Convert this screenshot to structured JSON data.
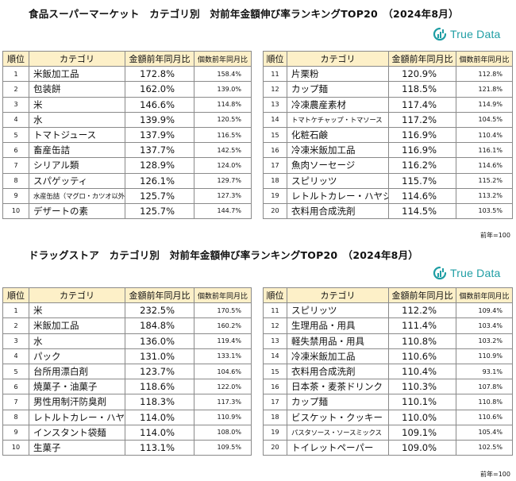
{
  "top": {
    "title": "食品スーパーマーケット　カテゴリ別　対前年金額伸び率ランキングTOP20　（2024年8月）",
    "logo_text": "True Data",
    "headers": {
      "rank": "順位",
      "category": "カテゴリ",
      "amount": "金額前年同月比",
      "count": "個数前年同月比"
    },
    "left_rows": [
      {
        "rank": "1",
        "name": "米飯加工品",
        "amount": "172.8%",
        "count": "158.4%"
      },
      {
        "rank": "2",
        "name": "包装餅",
        "amount": "162.0%",
        "count": "139.0%"
      },
      {
        "rank": "3",
        "name": "米",
        "amount": "146.6%",
        "count": "114.8%"
      },
      {
        "rank": "4",
        "name": "水",
        "amount": "139.9%",
        "count": "120.5%"
      },
      {
        "rank": "5",
        "name": "トマトジュース",
        "amount": "137.9%",
        "count": "116.5%"
      },
      {
        "rank": "6",
        "name": "畜産缶詰",
        "amount": "137.7%",
        "count": "142.5%"
      },
      {
        "rank": "7",
        "name": "シリアル類",
        "amount": "128.9%",
        "count": "124.0%"
      },
      {
        "rank": "8",
        "name": "スパゲッティ",
        "amount": "126.1%",
        "count": "129.7%"
      },
      {
        "rank": "9",
        "name": "水産缶詰（マグロ・カツオ以外）",
        "amount": "125.7%",
        "count": "127.3%"
      },
      {
        "rank": "10",
        "name": "デザートの素",
        "amount": "125.7%",
        "count": "144.7%"
      }
    ],
    "right_rows": [
      {
        "rank": "11",
        "name": "片栗粉",
        "amount": "120.9%",
        "count": "112.8%"
      },
      {
        "rank": "12",
        "name": "カップ麺",
        "amount": "118.5%",
        "count": "121.8%"
      },
      {
        "rank": "13",
        "name": "冷凍農産素材",
        "amount": "117.4%",
        "count": "114.9%"
      },
      {
        "rank": "14",
        "name": "トマトケチャップ・トマソース",
        "amount": "117.2%",
        "count": "104.5%"
      },
      {
        "rank": "15",
        "name": "化粧石鹸",
        "amount": "116.9%",
        "count": "110.4%"
      },
      {
        "rank": "16",
        "name": "冷凍米飯加工品",
        "amount": "116.9%",
        "count": "116.1%"
      },
      {
        "rank": "17",
        "name": "魚肉ソーセージ",
        "amount": "116.2%",
        "count": "114.6%"
      },
      {
        "rank": "18",
        "name": "スピリッツ",
        "amount": "115.7%",
        "count": "115.2%"
      },
      {
        "rank": "19",
        "name": "レトルトカレー・ハヤシ",
        "amount": "114.6%",
        "count": "113.2%"
      },
      {
        "rank": "20",
        "name": "衣料用合成洗剤",
        "amount": "114.5%",
        "count": "103.5%"
      }
    ],
    "note": "前年=100"
  },
  "bottom": {
    "title": "ドラッグストア　カテゴリ別　対前年金額伸び率ランキングTOP20　（2024年8月）",
    "logo_text": "True Data",
    "headers": {
      "rank": "順位",
      "category": "カテゴリ",
      "amount": "金額前年同月比",
      "count": "個数前年同月比"
    },
    "left_rows": [
      {
        "rank": "1",
        "name": "米",
        "amount": "232.5%",
        "count": "170.5%"
      },
      {
        "rank": "2",
        "name": "米飯加工品",
        "amount": "184.8%",
        "count": "160.2%"
      },
      {
        "rank": "3",
        "name": "水",
        "amount": "136.0%",
        "count": "119.4%"
      },
      {
        "rank": "4",
        "name": "パック",
        "amount": "131.0%",
        "count": "133.1%"
      },
      {
        "rank": "5",
        "name": "台所用漂白剤",
        "amount": "123.7%",
        "count": "104.6%"
      },
      {
        "rank": "6",
        "name": "焼菓子・油菓子",
        "amount": "118.6%",
        "count": "122.0%"
      },
      {
        "rank": "7",
        "name": "男性用制汗防臭剤",
        "amount": "118.3%",
        "count": "117.3%"
      },
      {
        "rank": "8",
        "name": "レトルトカレー・ハヤシ",
        "amount": "114.0%",
        "count": "110.9%"
      },
      {
        "rank": "9",
        "name": "インスタント袋麺",
        "amount": "114.0%",
        "count": "108.0%"
      },
      {
        "rank": "10",
        "name": "生菓子",
        "amount": "113.1%",
        "count": "109.5%"
      }
    ],
    "right_rows": [
      {
        "rank": "11",
        "name": "スピリッツ",
        "amount": "112.2%",
        "count": "109.4%"
      },
      {
        "rank": "12",
        "name": "生理用品・用具",
        "amount": "111.4%",
        "count": "103.4%"
      },
      {
        "rank": "13",
        "name": "軽失禁用品・用具",
        "amount": "110.8%",
        "count": "103.2%"
      },
      {
        "rank": "14",
        "name": "冷凍米飯加工品",
        "amount": "110.6%",
        "count": "110.9%"
      },
      {
        "rank": "15",
        "name": "衣料用合成洗剤",
        "amount": "110.4%",
        "count": "93.1%"
      },
      {
        "rank": "16",
        "name": "日本茶・麦茶ドリンク",
        "amount": "110.3%",
        "count": "107.8%"
      },
      {
        "rank": "17",
        "name": "カップ麺",
        "amount": "110.1%",
        "count": "110.8%"
      },
      {
        "rank": "18",
        "name": "ビスケット・クッキー",
        "amount": "110.0%",
        "count": "110.6%"
      },
      {
        "rank": "19",
        "name": "パスタソース・ソースミックス",
        "amount": "109.1%",
        "count": "105.4%"
      },
      {
        "rank": "20",
        "name": "トイレットペーパー",
        "amount": "109.0%",
        "count": "102.5%"
      }
    ],
    "note": "前年=100"
  },
  "colors": {
    "header_bg": "#fdf0c8",
    "logo": "#1f9ea4",
    "border": "#8a8a8a"
  },
  "icons": {
    "logo": "truedata-logo-icon"
  }
}
